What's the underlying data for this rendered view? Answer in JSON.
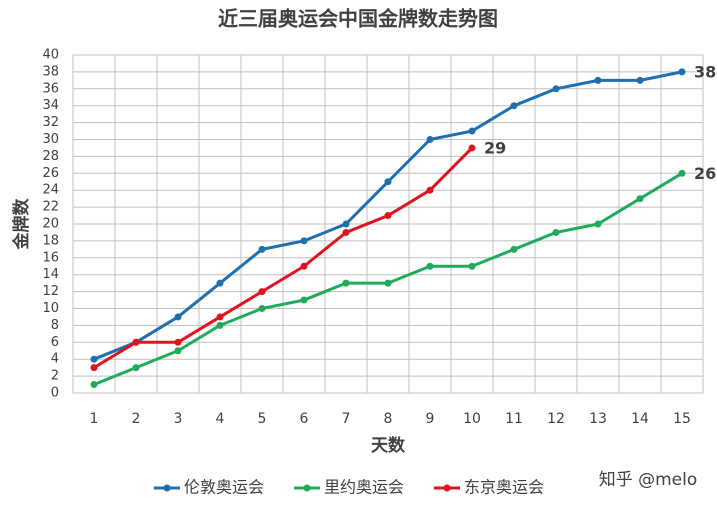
{
  "chart_data": {
    "type": "line",
    "title": "近三届奥运会中国金牌数走势图",
    "x_label": "天数",
    "y_label": "金牌数",
    "categories": [
      "1",
      "2",
      "3",
      "4",
      "5",
      "6",
      "7",
      "8",
      "9",
      "10",
      "11",
      "12",
      "13",
      "14",
      "15"
    ],
    "series": [
      {
        "name": "伦敦奥运会",
        "color": "#1f6fae",
        "label_color": "#404040",
        "values": [
          4,
          6,
          9,
          13,
          17,
          18,
          20,
          25,
          30,
          31,
          34,
          36,
          37,
          37,
          38
        ]
      },
      {
        "name": "里约奥运会",
        "color": "#1fab5b",
        "label_color": "#404040",
        "values": [
          1,
          3,
          5,
          8,
          10,
          11,
          13,
          13,
          15,
          15,
          17,
          19,
          20,
          23,
          26
        ]
      },
      {
        "name": "东京奥运会",
        "color": "#e0141e",
        "label_color": "#e0141e",
        "values": [
          3,
          6,
          6,
          9,
          12,
          15,
          19,
          21,
          24,
          29,
          null,
          null,
          null,
          null,
          null
        ]
      }
    ],
    "ylim": [
      0,
      40
    ],
    "yticks": [
      0,
      2,
      4,
      6,
      8,
      10,
      12,
      14,
      16,
      18,
      20,
      22,
      24,
      26,
      28,
      30,
      32,
      34,
      36,
      38,
      40
    ],
    "grid": true,
    "legend": "bottom",
    "watermark": "知乎 @melo"
  }
}
